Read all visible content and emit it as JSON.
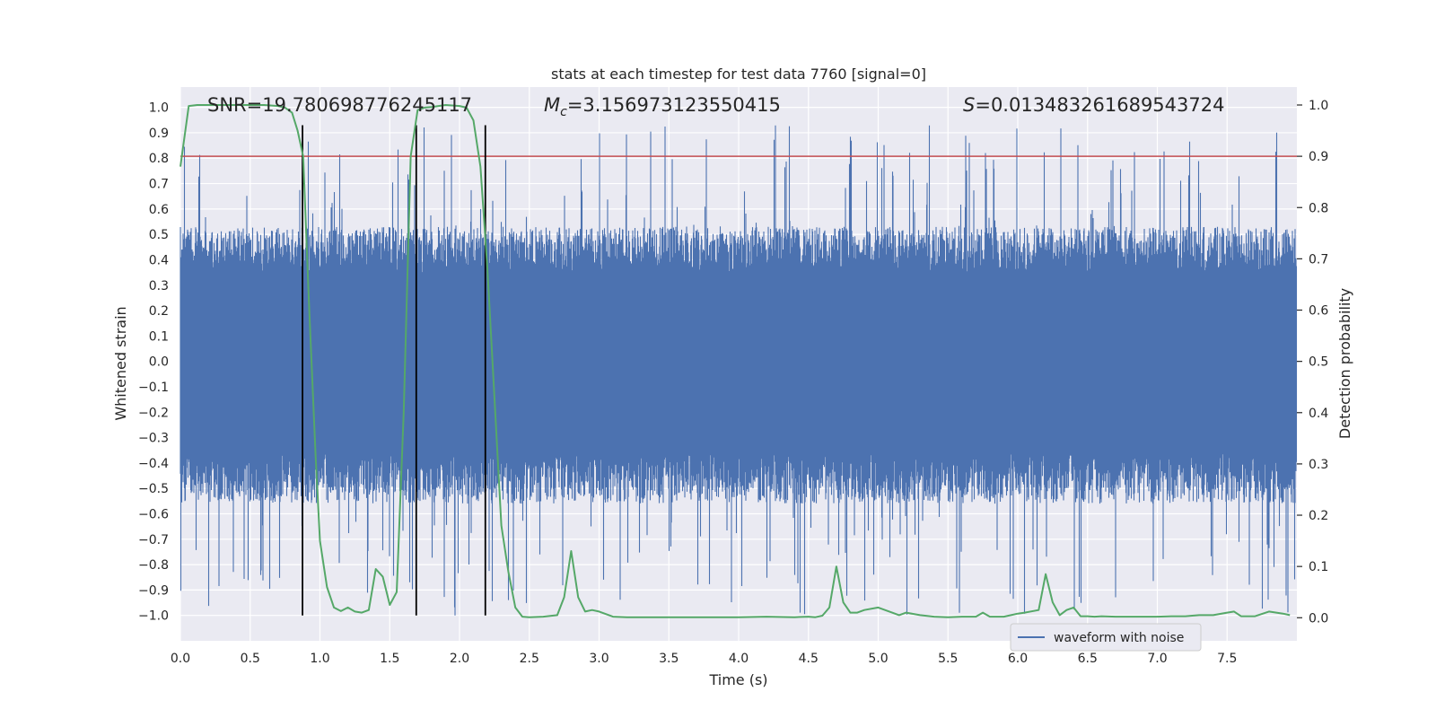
{
  "chart_data": {
    "type": "line",
    "title": "stats at each timestep for test data 7760 [signal=0]",
    "xlabel": "Time (s)",
    "ylabel": "Whitened strain",
    "ylabel_right": "Detection probability",
    "xlim": [
      0.0,
      8.0
    ],
    "ylim": [
      -1.1,
      1.08
    ],
    "ylim_right": [
      -0.045,
      1.035
    ],
    "x_ticks": [
      "0.0",
      "0.5",
      "1.0",
      "1.5",
      "2.0",
      "2.5",
      "3.0",
      "3.5",
      "4.0",
      "4.5",
      "5.0",
      "5.5",
      "6.0",
      "6.5",
      "7.0",
      "7.5"
    ],
    "y_ticks": [
      "1.0",
      "0.9",
      "0.8",
      "0.7",
      "0.6",
      "0.5",
      "0.4",
      "0.3",
      "0.2",
      "0.1",
      "0.0",
      "-0.1",
      "-0.2",
      "-0.3",
      "-0.4",
      "-0.5",
      "-0.6",
      "-0.7",
      "-0.8",
      "-0.9",
      "-1.0"
    ],
    "y_ticks_right": [
      "1.0",
      "0.9",
      "0.8",
      "0.7",
      "0.6",
      "0.5",
      "0.4",
      "0.3",
      "0.2",
      "0.1",
      "0.0"
    ],
    "annotations": {
      "snr": "SNR=19.780698776245117",
      "mc_symbol": "M",
      "mc_sub": "c",
      "mc_value": "=3.156973123550415",
      "s_symbol": "S",
      "s_value": "=0.013483261689543724"
    },
    "threshold": {
      "value": 0.9,
      "axis": "right",
      "color": "#c44e52"
    },
    "vertical_lines": [
      0.875,
      1.69,
      2.185
    ],
    "vertical_line_range": [
      -1.0,
      0.93
    ],
    "waveform": {
      "name": "waveform with noise",
      "color": "#4c72b0",
      "duration": 8.0,
      "core_amplitude": 0.33,
      "spike_range": [
        -1.0,
        0.93
      ]
    },
    "probability": {
      "color": "#55a868",
      "x": [
        0.0,
        0.06,
        0.12,
        0.2,
        0.3,
        0.4,
        0.5,
        0.6,
        0.7,
        0.75,
        0.8,
        0.84,
        0.88,
        0.92,
        0.97,
        1.0,
        1.05,
        1.1,
        1.15,
        1.2,
        1.25,
        1.3,
        1.35,
        1.4,
        1.45,
        1.5,
        1.55,
        1.6,
        1.65,
        1.7,
        1.75,
        1.8,
        1.9,
        2.0,
        2.05,
        2.1,
        2.15,
        2.2,
        2.25,
        2.3,
        2.35,
        2.4,
        2.45,
        2.5,
        2.6,
        2.7,
        2.75,
        2.8,
        2.85,
        2.9,
        2.95,
        3.0,
        3.1,
        3.2,
        3.5,
        3.8,
        4.0,
        4.2,
        4.4,
        4.5,
        4.55,
        4.6,
        4.65,
        4.7,
        4.75,
        4.8,
        4.85,
        4.9,
        5.0,
        5.1,
        5.15,
        5.2,
        5.3,
        5.4,
        5.5,
        5.6,
        5.7,
        5.75,
        5.8,
        5.9,
        6.0,
        6.05,
        6.15,
        6.2,
        6.25,
        6.3,
        6.35,
        6.4,
        6.45,
        6.5,
        6.55,
        6.6,
        6.7,
        6.8,
        6.9,
        7.0,
        7.1,
        7.2,
        7.3,
        7.4,
        7.5,
        7.55,
        7.6,
        7.7,
        7.8,
        7.9,
        7.95
      ],
      "y": [
        0.88,
        0.998,
        1.0,
        1.0,
        1.0,
        1.0,
        1.0,
        1.0,
        0.998,
        0.995,
        0.985,
        0.95,
        0.9,
        0.62,
        0.31,
        0.15,
        0.06,
        0.02,
        0.013,
        0.02,
        0.012,
        0.01,
        0.015,
        0.095,
        0.08,
        0.025,
        0.05,
        0.4,
        0.9,
        0.99,
        0.995,
        0.996,
        1.0,
        0.998,
        0.995,
        0.97,
        0.88,
        0.68,
        0.43,
        0.18,
        0.09,
        0.02,
        0.002,
        0.001,
        0.002,
        0.005,
        0.04,
        0.13,
        0.04,
        0.012,
        0.015,
        0.012,
        0.002,
        0.001,
        0.001,
        0.001,
        0.001,
        0.002,
        0.001,
        0.002,
        0.001,
        0.004,
        0.02,
        0.1,
        0.03,
        0.01,
        0.01,
        0.015,
        0.02,
        0.01,
        0.005,
        0.01,
        0.005,
        0.002,
        0.001,
        0.002,
        0.002,
        0.01,
        0.002,
        0.002,
        0.008,
        0.01,
        0.015,
        0.085,
        0.03,
        0.005,
        0.015,
        0.02,
        0.003,
        0.003,
        0.002,
        0.003,
        0.002,
        0.002,
        0.002,
        0.002,
        0.003,
        0.003,
        0.005,
        0.005,
        0.01,
        0.012,
        0.003,
        0.003,
        0.012,
        0.008,
        0.005
      ]
    },
    "legend": {
      "label": "waveform with noise",
      "placement": "lower-right"
    },
    "grid": true
  }
}
